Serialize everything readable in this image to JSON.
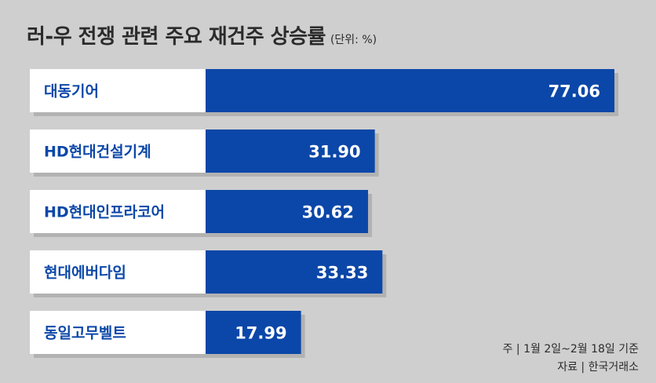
{
  "chart_data": {
    "type": "bar",
    "orientation": "horizontal",
    "title": "러-우 전쟁 관련 주요 재건주 상승률",
    "unit_label": "(단위: %)",
    "categories": [
      "대동기어",
      "HD현대건설기계",
      "HD현대인프라코어",
      "현대에버다임",
      "동일고무벨트"
    ],
    "values": [
      77.06,
      31.9,
      30.62,
      33.33,
      17.99
    ],
    "value_labels": [
      "77.06",
      "31.90",
      "30.62",
      "33.33",
      "17.99"
    ],
    "xlim": [
      0,
      77.06
    ],
    "grid": false,
    "legend": "none"
  },
  "footnotes": {
    "note": "주 | 1월 2일~2월 18일 기준",
    "source": "자료 | 한국거래소"
  },
  "colors": {
    "bar": "#0b47a8",
    "label_box": "#ffffff",
    "background": "#cfcfcf",
    "shadow": "#9a9a9a"
  }
}
